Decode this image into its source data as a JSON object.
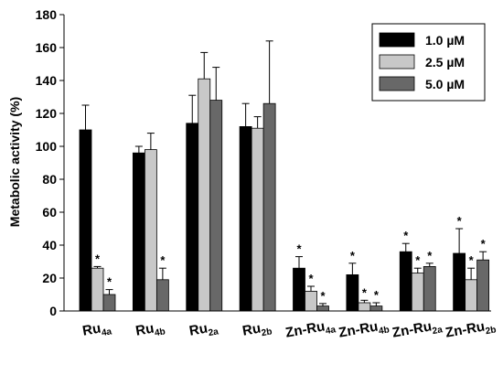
{
  "chart_data": {
    "type": "bar",
    "title": "",
    "xlabel": "",
    "ylabel": "Metabolic activity (%)",
    "ylim": [
      0,
      180
    ],
    "yticks": [
      0,
      20,
      40,
      60,
      80,
      100,
      120,
      140,
      160,
      180
    ],
    "grid": false,
    "legend_position": "top-right",
    "categories": [
      "Ru4a",
      "Ru4b",
      "Ru2a",
      "Ru2b",
      "Zn-Ru4a",
      "Zn-Ru4b",
      "Zn-Ru2a",
      "Zn-Ru2b"
    ],
    "category_labels": [
      {
        "main": "Ru",
        "sub": "4a"
      },
      {
        "main": "Ru",
        "sub": "4b"
      },
      {
        "main": "Ru",
        "sub": "2a"
      },
      {
        "main": "Ru",
        "sub": "2b"
      },
      {
        "main": "Zn-Ru",
        "sub": "4a"
      },
      {
        "main": "Zn-Ru",
        "sub": "4b"
      },
      {
        "main": "Zn-Ru",
        "sub": "2a"
      },
      {
        "main": "Zn-Ru",
        "sub": "2b"
      }
    ],
    "series": [
      {
        "name": "1.0 µM",
        "color": "#000000",
        "values": [
          110,
          96,
          114,
          112,
          26,
          22,
          36,
          35
        ],
        "errors": [
          15,
          4,
          17,
          14,
          7,
          7,
          5,
          15
        ],
        "significant": [
          false,
          false,
          false,
          false,
          true,
          true,
          true,
          true
        ]
      },
      {
        "name": "2.5 µM",
        "color": "#c8c8c8",
        "values": [
          26,
          98,
          141,
          111,
          12,
          5,
          23,
          19
        ],
        "errors": [
          1,
          10,
          16,
          7,
          3,
          1.5,
          3,
          7
        ],
        "significant": [
          true,
          false,
          false,
          false,
          true,
          true,
          true,
          true
        ]
      },
      {
        "name": "5.0 µM",
        "color": "#686868",
        "values": [
          10,
          19,
          128,
          126,
          3,
          3,
          27,
          31
        ],
        "errors": [
          3,
          7,
          20,
          38,
          1.5,
          2,
          2,
          5
        ],
        "significant": [
          true,
          true,
          false,
          false,
          true,
          true,
          true,
          true
        ]
      }
    ],
    "significance_marker": "*"
  }
}
